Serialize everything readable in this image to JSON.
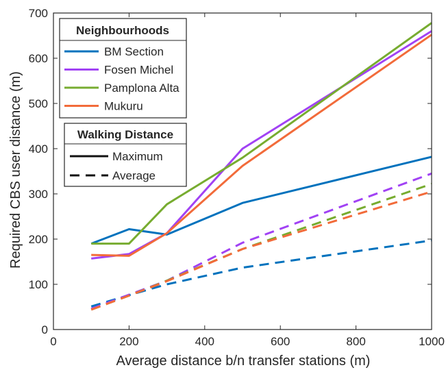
{
  "chart_data": {
    "type": "line",
    "xlabel": "Average distance b/n transfer stations (m)",
    "ylabel": "Required CBS user distance (m)",
    "xlim": [
      0,
      1000
    ],
    "ylim": [
      0,
      700
    ],
    "xticks": [
      0,
      200,
      400,
      600,
      800,
      1000
    ],
    "yticks": [
      0,
      100,
      200,
      300,
      400,
      500,
      600,
      700
    ],
    "grid": false,
    "legend_placement": "top-left",
    "legends": [
      {
        "title": "Neighbourhoods",
        "entries": [
          {
            "label": "BM Section",
            "color": "#0072BD"
          },
          {
            "label": "Fosen Michel",
            "color": "#A142F4"
          },
          {
            "label": "Pamplona Alta",
            "color": "#77AC30"
          },
          {
            "label": "Mukuru",
            "color": "#F26B3A"
          }
        ]
      },
      {
        "title": "Walking Distance",
        "entries": [
          {
            "label": "Maximum",
            "style": "solid"
          },
          {
            "label": "Average",
            "style": "dashed"
          }
        ]
      }
    ],
    "series": [
      {
        "name": "BM Section",
        "style": "solid",
        "color": "#0072BD",
        "x": [
          100,
          200,
          300,
          500,
          1000
        ],
        "y": [
          190,
          222,
          210,
          280,
          382
        ]
      },
      {
        "name": "Fosen Michel",
        "style": "solid",
        "color": "#A142F4",
        "x": [
          100,
          200,
          300,
          500,
          1000
        ],
        "y": [
          157,
          167,
          213,
          400,
          660
        ]
      },
      {
        "name": "Pamplona Alta",
        "style": "solid",
        "color": "#77AC30",
        "x": [
          100,
          200,
          300,
          500,
          1000
        ],
        "y": [
          190,
          190,
          277,
          380,
          678
        ]
      },
      {
        "name": "Mukuru",
        "style": "solid",
        "color": "#F26B3A",
        "x": [
          100,
          200,
          300,
          500,
          1000
        ],
        "y": [
          165,
          163,
          213,
          362,
          652
        ]
      },
      {
        "name": "BM Section",
        "style": "dashed",
        "color": "#0072BD",
        "x": [
          100,
          200,
          300,
          500,
          1000
        ],
        "y": [
          51,
          76,
          100,
          137,
          197
        ]
      },
      {
        "name": "Fosen Michel",
        "style": "dashed",
        "color": "#A142F4",
        "x": [
          100,
          200,
          300,
          500,
          1000
        ],
        "y": [
          46,
          77,
          108,
          192,
          345
        ]
      },
      {
        "name": "Pamplona Alta",
        "style": "dashed",
        "color": "#77AC30",
        "x": [
          100,
          200,
          300,
          500,
          1000
        ],
        "y": [
          44,
          75,
          108,
          178,
          322
        ]
      },
      {
        "name": "Mukuru",
        "style": "dashed",
        "color": "#F26B3A",
        "x": [
          100,
          200,
          300,
          500,
          1000
        ],
        "y": [
          44,
          75,
          107,
          178,
          305
        ]
      }
    ]
  }
}
